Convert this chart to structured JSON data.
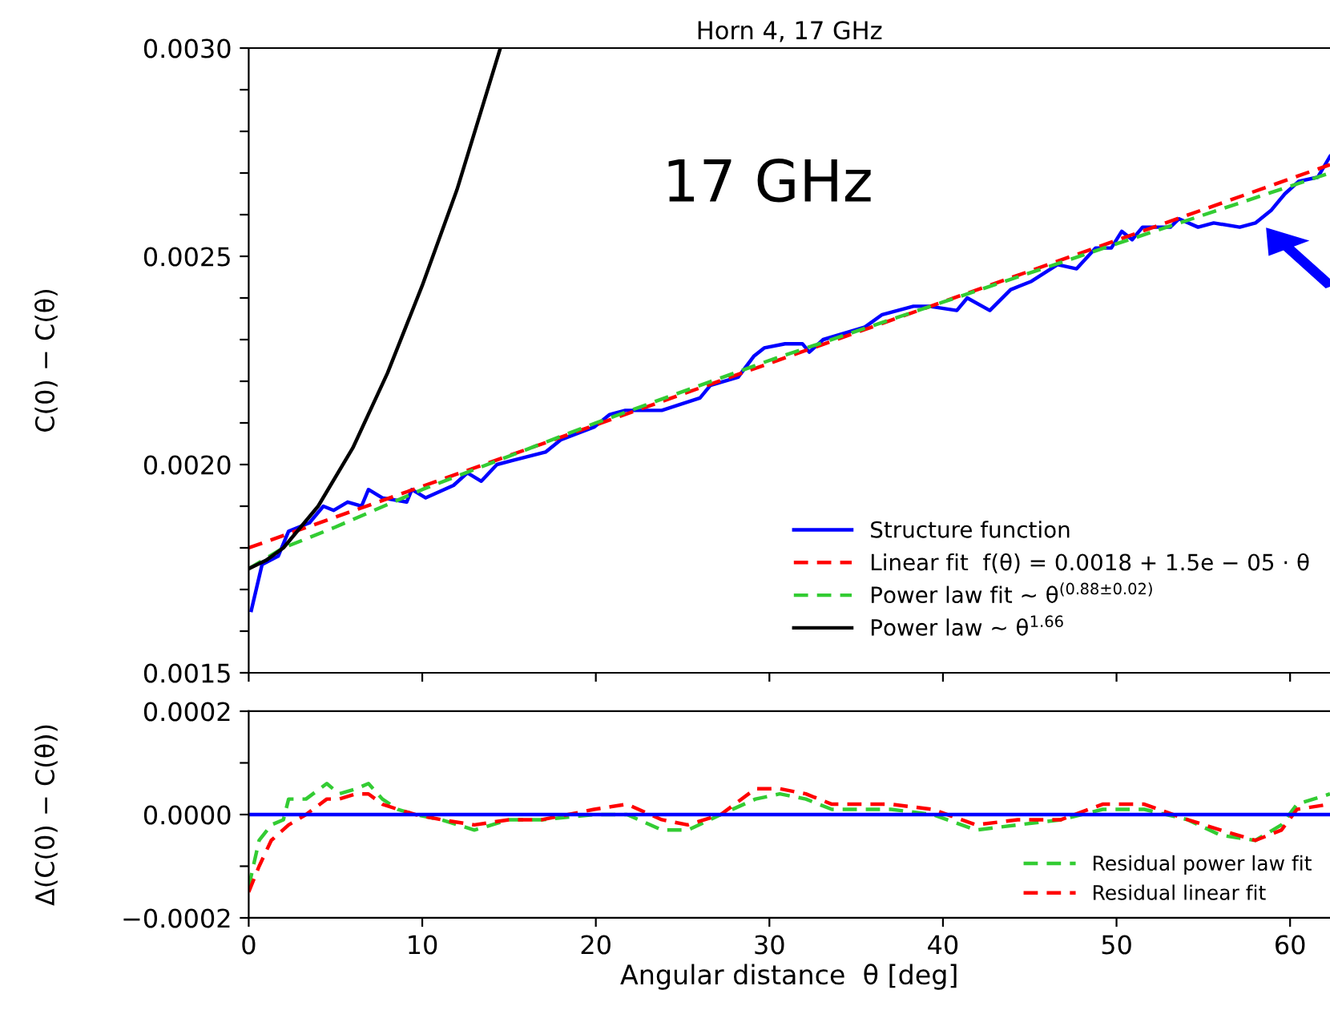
{
  "chart_data": [
    {
      "type": "line",
      "title": "Horn 4, 17 GHz",
      "ylabel": "C(0) − C(θ)",
      "xlim": [
        0,
        62.3
      ],
      "ylim": [
        0.0015,
        0.003
      ],
      "xticks": [
        {
          "value": 0,
          "label": null
        },
        {
          "value": 10,
          "label": null
        },
        {
          "value": 20,
          "label": null
        },
        {
          "value": 30,
          "label": null
        },
        {
          "value": 40,
          "label": null
        },
        {
          "value": 50,
          "label": null
        },
        {
          "value": 60,
          "label": null
        }
      ],
      "yticks": [
        {
          "value": 0.0015,
          "label": "0.0015"
        },
        {
          "value": 0.0016,
          "label": null
        },
        {
          "value": 0.0017,
          "label": null
        },
        {
          "value": 0.0018,
          "label": null
        },
        {
          "value": 0.0019,
          "label": null
        },
        {
          "value": 0.002,
          "label": "0.0020"
        },
        {
          "value": 0.0021,
          "label": null
        },
        {
          "value": 0.0022,
          "label": null
        },
        {
          "value": 0.0023,
          "label": null
        },
        {
          "value": 0.0024,
          "label": null
        },
        {
          "value": 0.0025,
          "label": "0.0025"
        },
        {
          "value": 0.0026,
          "label": null
        },
        {
          "value": 0.0027,
          "label": null
        },
        {
          "value": 0.0028,
          "label": null
        },
        {
          "value": 0.0029,
          "label": null
        },
        {
          "value": 0.003,
          "label": "0.0030"
        }
      ],
      "tick_labels": "y",
      "grid": false,
      "legend": "bottom right",
      "annotations": [
        "17 GHz"
      ],
      "series": [
        {
          "name": "Structure function",
          "color": "#0000ff",
          "line_style": "solid",
          "x": [
            0.15,
            0.77,
            1.7,
            2.3,
            3.5,
            4.3,
            4.9,
            5.7,
            6.5,
            6.9,
            7.7,
            9.1,
            9.4,
            10.2,
            11.8,
            12.6,
            13.4,
            14.3,
            15.2,
            17.1,
            18.0,
            19.9,
            20.8,
            21.7,
            22.9,
            23.8,
            26.0,
            26.6,
            28.2,
            29.1,
            29.7,
            30.9,
            31.9,
            32.3,
            33.1,
            35.5,
            36.5,
            38.3,
            39.2,
            40.8,
            41.4,
            42.7,
            43.9,
            45.1,
            46.6,
            47.7,
            48.8,
            49.7,
            50.3,
            50.9,
            51.5,
            53.1,
            53.6,
            54.7,
            55.6,
            57.1,
            58.0,
            58.9,
            59.7,
            60.5,
            61.6,
            62.3
          ],
          "values": [
            0.00165,
            0.00176,
            0.00178,
            0.00184,
            0.00186,
            0.0019,
            0.00189,
            0.00191,
            0.0019,
            0.00194,
            0.00192,
            0.00191,
            0.00194,
            0.00192,
            0.00195,
            0.00198,
            0.00196,
            0.002,
            0.00201,
            0.00203,
            0.00206,
            0.00209,
            0.00212,
            0.00213,
            0.00213,
            0.00213,
            0.00216,
            0.00219,
            0.00221,
            0.00226,
            0.00228,
            0.00229,
            0.00229,
            0.00227,
            0.0023,
            0.00233,
            0.00236,
            0.00238,
            0.00238,
            0.00237,
            0.0024,
            0.00237,
            0.00242,
            0.00244,
            0.00248,
            0.00247,
            0.00252,
            0.00252,
            0.00256,
            0.00254,
            0.00257,
            0.00257,
            0.00259,
            0.00257,
            0.00258,
            0.00257,
            0.00258,
            0.00261,
            0.00265,
            0.00268,
            0.00269,
            0.00274
          ]
        },
        {
          "name": "Linear fit  f(θ) = 0.0018 + 1.5e − 05 · θ",
          "color": "#ff0000",
          "line_style": "dashed",
          "x": [
            0,
            62.3
          ],
          "values": [
            0.0018,
            0.00272
          ]
        },
        {
          "name": "Power law fit ~ θ$^{(0.88±0.02)}$",
          "color": "#33cc33",
          "line_style": "dashed",
          "x": [
            0,
            2,
            5,
            10,
            20,
            30,
            40,
            50,
            62.3
          ],
          "values": [
            0.00175,
            0.0018,
            0.00185,
            0.00194,
            0.0021,
            0.00225,
            0.00239,
            0.00253,
            0.0027
          ]
        },
        {
          "name": "Power law ~ θ$^{1.66}$",
          "color": "#000000",
          "line_style": "solid",
          "x": [
            0,
            1,
            2,
            4,
            6,
            8,
            10,
            12,
            14.5
          ],
          "values": [
            0.00175,
            0.00177,
            0.0018,
            0.0019,
            0.00204,
            0.00222,
            0.00243,
            0.00266,
            0.003
          ]
        }
      ]
    },
    {
      "type": "line",
      "xlabel": "Angular distance  θ [deg]",
      "ylabel": "Δ(C(0) − C(θ))",
      "xlim": [
        0,
        62.3
      ],
      "ylim": [
        -0.0002,
        0.0002
      ],
      "xticks": [
        0,
        10,
        20,
        30,
        40,
        50,
        60
      ],
      "yticks": [
        {
          "value": -0.0002,
          "label": "−0.0002"
        },
        {
          "value": -0.0001,
          "label": null
        },
        {
          "value": 0.0,
          "label": "0.0000"
        },
        {
          "value": 0.0001,
          "label": null
        },
        {
          "value": 0.0002,
          "label": "0.0002"
        }
      ],
      "grid": false,
      "legend": "bottom right",
      "ref_lines": [
        {
          "axis": "y",
          "value": 0,
          "color": "#0000ff",
          "line_style": "solid"
        }
      ],
      "series": [
        {
          "name": "Residual power law fit",
          "color": "#33cc33",
          "line_style": "dashed",
          "x": [
            0,
            0.6,
            1.3,
            2.0,
            2.3,
            3.3,
            4.5,
            5.2,
            6.2,
            6.9,
            7.7,
            8.6,
            9.6,
            11.1,
            13.0,
            15.0,
            16.9,
            19.9,
            21.8,
            23.8,
            25.3,
            27.2,
            29.2,
            30.6,
            32.1,
            33.6,
            37.0,
            39.4,
            41.9,
            44.3,
            46.8,
            49.2,
            51.6,
            54.1,
            56.0,
            58.0,
            59.5,
            60.4,
            62.3
          ],
          "values": [
            -0.00014,
            -5e-05,
            -2e-05,
            -1e-05,
            3e-05,
            3e-05,
            6e-05,
            4e-05,
            5e-05,
            6e-05,
            3e-05,
            1e-05,
            0.0,
            -1e-05,
            -3e-05,
            -1e-05,
            -1e-05,
            0.0,
            0.0,
            -3e-05,
            -3e-05,
            0.0,
            3e-05,
            4e-05,
            3e-05,
            1e-05,
            1e-05,
            0.0,
            -3e-05,
            -2e-05,
            -1e-05,
            1e-05,
            1e-05,
            -1e-05,
            -4e-05,
            -5e-05,
            -2e-05,
            2e-05,
            4e-05
          ]
        },
        {
          "name": "Residual linear fit",
          "color": "#ff0000",
          "line_style": "dashed",
          "x": [
            0,
            0.6,
            1.3,
            2.3,
            3.3,
            4.5,
            5.2,
            6.2,
            6.9,
            7.7,
            8.6,
            9.6,
            11.1,
            13.0,
            15.0,
            16.9,
            19.9,
            21.8,
            23.8,
            25.3,
            27.2,
            29.2,
            30.6,
            32.1,
            33.6,
            37.0,
            39.4,
            41.9,
            44.3,
            46.8,
            49.2,
            51.6,
            54.1,
            56.0,
            58.0,
            59.5,
            60.4,
            62.3
          ],
          "values": [
            -0.00015,
            -0.0001,
            -5e-05,
            -2e-05,
            0.0,
            3e-05,
            3e-05,
            4e-05,
            4e-05,
            2e-05,
            1e-05,
            0.0,
            -1e-05,
            -2e-05,
            -1e-05,
            -1e-05,
            1e-05,
            2e-05,
            -1e-05,
            -2e-05,
            0.0,
            5e-05,
            5e-05,
            4e-05,
            2e-05,
            2e-05,
            1e-05,
            -2e-05,
            -1e-05,
            -1e-05,
            2e-05,
            2e-05,
            -1e-05,
            -3e-05,
            -5e-05,
            -3e-05,
            1e-05,
            2e-05
          ]
        }
      ]
    }
  ]
}
